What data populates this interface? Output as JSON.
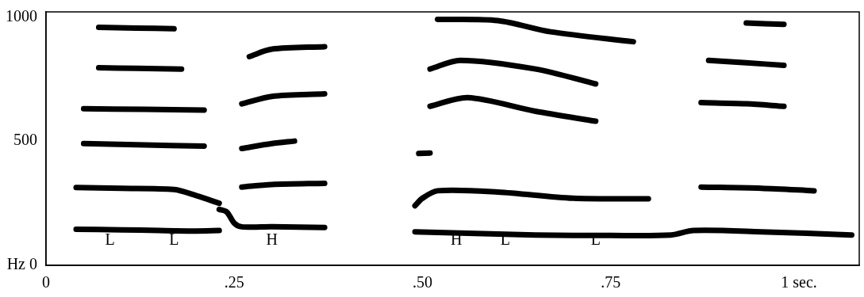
{
  "chart_data": {
    "type": "line",
    "xlim": [
      0,
      1.08
    ],
    "xticks": [
      0,
      {
        "value": 0.25,
        "label": ".25"
      },
      {
        "value": 0.5,
        "label": ".50"
      },
      {
        "value": 0.75,
        "label": ".75"
      },
      {
        "value": 1,
        "label": "1 sec."
      }
    ],
    "ylim": [
      0,
      1020
    ],
    "yticks": [
      {
        "value": 0,
        "label": "Hz 0"
      },
      500,
      1000
    ],
    "grid": false,
    "series": [
      {
        "color": "#000000",
        "x": [
          0.04,
          0.1,
          0.15,
          0.2,
          0.23
        ],
        "values": [
          145,
          143,
          140,
          138,
          140
        ]
      },
      {
        "color": "#000000",
        "x": [
          0.23,
          0.24,
          0.25,
          0.26,
          0.3,
          0.37
        ],
        "values": [
          225,
          215,
          170,
          155,
          155,
          152
        ]
      },
      {
        "color": "#000000",
        "x": [
          0.04,
          0.1,
          0.17,
          0.2,
          0.23
        ],
        "values": [
          313,
          310,
          305,
          280,
          250
        ]
      },
      {
        "color": "#000000",
        "x": [
          0.05,
          0.12,
          0.21
        ],
        "values": [
          490,
          485,
          480
        ]
      },
      {
        "color": "#000000",
        "x": [
          0.05,
          0.13,
          0.21
        ],
        "values": [
          630,
          628,
          625
        ]
      },
      {
        "color": "#000000",
        "x": [
          0.07,
          0.12,
          0.18
        ],
        "values": [
          795,
          793,
          790
        ]
      },
      {
        "color": "#000000",
        "x": [
          0.07,
          0.12,
          0.17
        ],
        "values": [
          958,
          955,
          952
        ]
      },
      {
        "color": "#000000",
        "x": [
          0.26,
          0.3,
          0.37
        ],
        "values": [
          315,
          325,
          330
        ]
      },
      {
        "color": "#000000",
        "x": [
          0.26,
          0.3,
          0.33
        ],
        "values": [
          470,
          490,
          500
        ]
      },
      {
        "color": "#000000",
        "x": [
          0.26,
          0.3,
          0.37
        ],
        "values": [
          650,
          680,
          690
        ]
      },
      {
        "color": "#000000",
        "x": [
          0.27,
          0.3,
          0.37
        ],
        "values": [
          840,
          870,
          880
        ]
      },
      {
        "color": "#000000",
        "x": [
          0.49,
          0.55,
          0.65,
          0.75,
          0.83,
          0.86,
          0.95,
          1.07
        ],
        "values": [
          135,
          130,
          122,
          120,
          122,
          140,
          135,
          122
        ]
      },
      {
        "color": "#000000",
        "x": [
          0.49,
          0.5,
          0.52,
          0.6,
          0.7,
          0.8
        ],
        "values": [
          240,
          270,
          300,
          295,
          270,
          268
        ]
      },
      {
        "color": "#000000",
        "x": [
          0.495,
          0.51
        ],
        "values": [
          450,
          452
        ]
      },
      {
        "color": "#000000",
        "x": [
          0.51,
          0.56,
          0.65,
          0.73
        ],
        "values": [
          640,
          675,
          620,
          580
        ]
      },
      {
        "color": "#000000",
        "x": [
          0.51,
          0.55,
          0.65,
          0.73
        ],
        "values": [
          790,
          825,
          790,
          730
        ]
      },
      {
        "color": "#000000",
        "x": [
          0.52,
          0.6,
          0.67,
          0.78
        ],
        "values": [
          990,
          985,
          940,
          900
        ]
      },
      {
        "color": "#000000",
        "x": [
          0.87,
          0.95,
          1.02
        ],
        "values": [
          315,
          310,
          300
        ]
      },
      {
        "color": "#000000",
        "x": [
          0.87,
          0.93,
          0.98
        ],
        "values": [
          655,
          650,
          640
        ]
      },
      {
        "color": "#000000",
        "x": [
          0.88,
          0.93,
          0.98
        ],
        "values": [
          825,
          815,
          805
        ]
      },
      {
        "color": "#000000",
        "x": [
          0.93,
          0.98
        ],
        "values": [
          975,
          970
        ]
      }
    ],
    "annotations": [
      {
        "text": "L",
        "x": 0.085,
        "y": 100
      },
      {
        "text": "L",
        "x": 0.17,
        "y": 100
      },
      {
        "text": "H",
        "x": 0.3,
        "y": 100
      },
      {
        "text": "H",
        "x": 0.545,
        "y": 100
      },
      {
        "text": "L",
        "x": 0.61,
        "y": 100
      },
      {
        "text": "L",
        "x": 0.73,
        "y": 100
      }
    ]
  }
}
